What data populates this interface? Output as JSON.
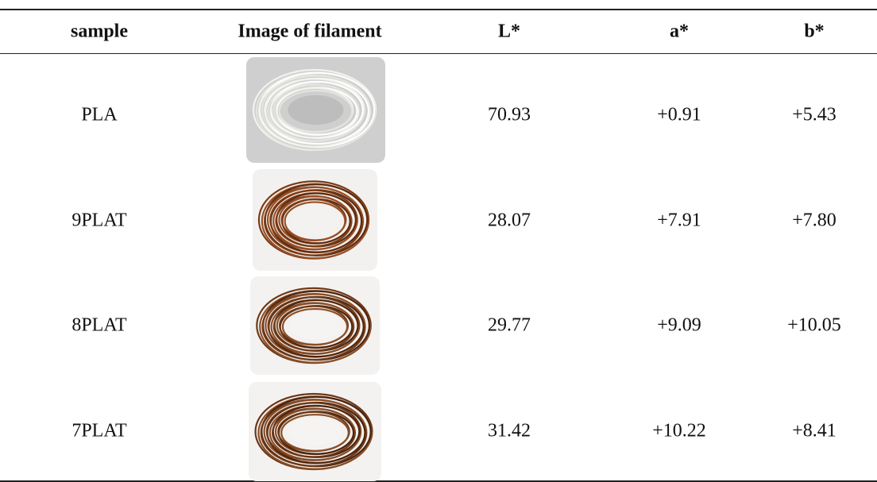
{
  "table": {
    "header": [
      "sample",
      "Image of filament",
      "L*",
      "a*",
      "b*"
    ],
    "rows": [
      [
        "PLA",
        "70.93",
        "+0.91",
        "+5.43"
      ],
      [
        "9PLAT",
        "28.07",
        "+7.91",
        "+7.80"
      ],
      [
        "8PLAT",
        "29.77",
        "+9.09",
        "+10.05"
      ],
      [
        "7PLAT",
        "31.42",
        "+10.22",
        "+8.41"
      ]
    ]
  }
}
